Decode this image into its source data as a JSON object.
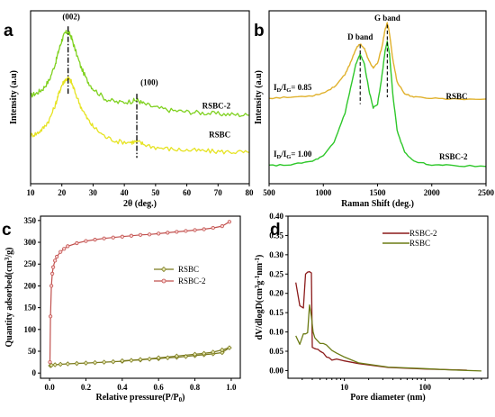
{
  "chart_data": [
    {
      "panel": "a",
      "type": "line",
      "xlabel": "2θ (deg.)",
      "ylabel": "Intensity (a.u)",
      "xlim": [
        10,
        80
      ],
      "xticks": [
        10,
        20,
        30,
        40,
        50,
        60,
        70,
        80
      ],
      "annotations": [
        "(002)",
        "(100)"
      ],
      "series": [
        {
          "name": "RSBC-2",
          "color": "#7fd11f",
          "x": [
            10,
            12,
            14,
            16,
            18,
            19,
            20,
            21,
            22,
            23,
            24,
            26,
            28,
            30,
            34,
            38,
            42,
            44,
            46,
            50,
            55,
            60,
            65,
            70,
            75,
            80
          ],
          "y": [
            2.55,
            2.62,
            2.75,
            3.0,
            3.5,
            3.85,
            4.15,
            4.35,
            4.4,
            4.25,
            3.95,
            3.4,
            3.0,
            2.75,
            2.45,
            2.35,
            2.38,
            2.42,
            2.32,
            2.2,
            2.12,
            2.08,
            2.05,
            2.02,
            2.0,
            1.98
          ]
        },
        {
          "name": "RSBC",
          "color": "#e6e322",
          "x": [
            10,
            12,
            14,
            16,
            18,
            19,
            20,
            21,
            22,
            23,
            24,
            26,
            28,
            30,
            34,
            38,
            42,
            44,
            46,
            50,
            55,
            60,
            65,
            70,
            75,
            80
          ],
          "y": [
            1.4,
            1.45,
            1.6,
            1.85,
            2.3,
            2.6,
            2.85,
            3.0,
            3.05,
            2.95,
            2.7,
            2.25,
            1.9,
            1.65,
            1.35,
            1.22,
            1.2,
            1.22,
            1.15,
            1.05,
            1.0,
            0.97,
            0.95,
            0.93,
            0.92,
            0.9
          ]
        }
      ]
    },
    {
      "panel": "b",
      "type": "line",
      "xlabel": "Raman Shift (deg.)",
      "ylabel": "Intensity (a.u)",
      "xlim": [
        500,
        2500
      ],
      "xticks": [
        500,
        1000,
        1500,
        2000,
        2500
      ],
      "bands": [
        {
          "label": "D band",
          "x": 1340
        },
        {
          "label": "G band",
          "x": 1590
        }
      ],
      "ratios": [
        {
          "series": "RSBC",
          "sub": "D",
          "sub2": "G",
          "value": "= 0.85"
        },
        {
          "series": "RSBC-2",
          "sub": "D",
          "sub2": "G",
          "value": "= 1.00"
        }
      ],
      "series": [
        {
          "name": "RSBC",
          "color": "#e0b12c",
          "x": [
            500,
            700,
            900,
            1000,
            1100,
            1200,
            1250,
            1300,
            1340,
            1380,
            1420,
            1460,
            1500,
            1540,
            1570,
            1590,
            1610,
            1640,
            1680,
            1750,
            1850,
            2000,
            2200,
            2500
          ],
          "y": [
            4.95,
            5.0,
            5.1,
            5.25,
            5.6,
            6.3,
            7.0,
            7.8,
            8.1,
            7.8,
            7.1,
            6.7,
            6.95,
            7.9,
            8.9,
            9.3,
            8.7,
            7.2,
            5.9,
            5.2,
            5.0,
            4.95,
            4.9,
            4.9
          ]
        },
        {
          "name": "RSBC-2",
          "color": "#2ec72a",
          "x": [
            500,
            700,
            900,
            1000,
            1100,
            1200,
            1250,
            1300,
            1340,
            1380,
            1420,
            1460,
            1500,
            1540,
            1570,
            1590,
            1610,
            1640,
            1680,
            1750,
            1850,
            2000,
            2200,
            2500
          ],
          "y": [
            1.05,
            1.1,
            1.3,
            1.6,
            2.4,
            4.1,
            5.5,
            6.9,
            7.5,
            6.9,
            5.4,
            4.4,
            4.6,
            6.2,
            7.7,
            8.2,
            7.5,
            5.2,
            3.1,
            1.8,
            1.25,
            1.1,
            1.05,
            1.0
          ]
        }
      ]
    },
    {
      "panel": "c",
      "type": "line",
      "xlabel": "Relative pressure(P/P",
      "xlabel_sub": "0",
      "ylabel": "Quantity adsorbed(cm",
      "ylabel_sup": "3",
      "ylabel_end": "/g)",
      "xlim": [
        -0.05,
        1.05
      ],
      "ylim": [
        -12,
        360
      ],
      "xticks": [
        0.0,
        0.2,
        0.4,
        0.6,
        0.8,
        1.0
      ],
      "yticks": [
        0,
        50,
        100,
        150,
        200,
        250,
        300,
        350
      ],
      "legend_position": "center-right",
      "series": [
        {
          "name": "RSBC",
          "color": "#7a7a1e",
          "x": [
            0.005,
            0.01,
            0.03,
            0.06,
            0.1,
            0.15,
            0.2,
            0.25,
            0.3,
            0.35,
            0.4,
            0.45,
            0.5,
            0.55,
            0.6,
            0.65,
            0.7,
            0.75,
            0.8,
            0.85,
            0.9,
            0.95,
            0.99,
            0.95,
            0.9,
            0.85,
            0.8,
            0.7,
            0.6,
            0.5,
            0.4
          ],
          "y": [
            17,
            18,
            19,
            20,
            21,
            22,
            23,
            24,
            25,
            26,
            27,
            29,
            30,
            32,
            33,
            35,
            36,
            38,
            40,
            42,
            44,
            47,
            58,
            53,
            48,
            45,
            43,
            39,
            35,
            31,
            28
          ]
        },
        {
          "name": "RSBC-2",
          "color": "#c0504d",
          "x": [
            0.002,
            0.005,
            0.01,
            0.015,
            0.02,
            0.03,
            0.04,
            0.06,
            0.08,
            0.1,
            0.15,
            0.2,
            0.25,
            0.3,
            0.35,
            0.4,
            0.45,
            0.5,
            0.55,
            0.6,
            0.65,
            0.7,
            0.75,
            0.8,
            0.85,
            0.9,
            0.95,
            0.99
          ],
          "y": [
            25,
            130,
            200,
            228,
            243,
            258,
            267,
            278,
            285,
            291,
            298,
            303,
            306,
            309,
            311,
            313,
            315,
            317,
            318,
            320,
            322,
            324,
            326,
            328,
            330,
            333,
            337,
            347
          ]
        }
      ]
    },
    {
      "panel": "d",
      "type": "line",
      "xlabel": "Pore diameter (nm)",
      "ylabel": "dV/dlogD(cm",
      "ylabel_sup": "3",
      "ylabel_mid": "g",
      "ylabel_sup2": "-1",
      "ylabel_mid2": "nm",
      "ylabel_sup3": "-1",
      "ylabel_end": ")",
      "xscale": "log",
      "xlim": [
        2,
        600
      ],
      "ylim": [
        -0.02,
        0.4
      ],
      "xticks": [
        10,
        100
      ],
      "yticks": [
        0.0,
        0.05,
        0.1,
        0.15,
        0.2,
        0.25,
        0.3,
        0.35,
        0.4
      ],
      "legend_position": "top-center",
      "series": [
        {
          "name": "RSBC-2",
          "color": "#8b1a1a",
          "x": [
            2.5,
            2.8,
            3.1,
            3.3,
            3.5,
            3.7,
            3.9,
            4.0,
            4.2,
            4.4,
            4.7,
            5.0,
            5.5,
            6.0,
            6.5,
            7.0,
            8.0,
            10,
            15,
            35,
            100,
            330
          ],
          "y": [
            0.228,
            0.168,
            0.162,
            0.25,
            0.255,
            0.256,
            0.253,
            0.06,
            0.058,
            0.056,
            0.055,
            0.05,
            0.045,
            0.035,
            0.033,
            0.027,
            0.03,
            0.025,
            0.018,
            0.008,
            0.004,
            0.001
          ]
        },
        {
          "name": "RSBC",
          "color": "#6b7b14",
          "x": [
            2.5,
            2.8,
            3.1,
            3.3,
            3.5,
            3.7,
            3.9,
            4.1,
            4.3,
            4.5,
            5.0,
            5.5,
            6.0,
            7.0,
            8.0,
            10,
            15,
            35,
            100,
            200,
            500
          ],
          "y": [
            0.09,
            0.068,
            0.095,
            0.095,
            0.098,
            0.17,
            0.14,
            0.1,
            0.085,
            0.08,
            0.07,
            0.07,
            0.066,
            0.052,
            0.045,
            0.035,
            0.02,
            0.009,
            0.005,
            0.002,
            -0.001
          ]
        }
      ]
    }
  ]
}
